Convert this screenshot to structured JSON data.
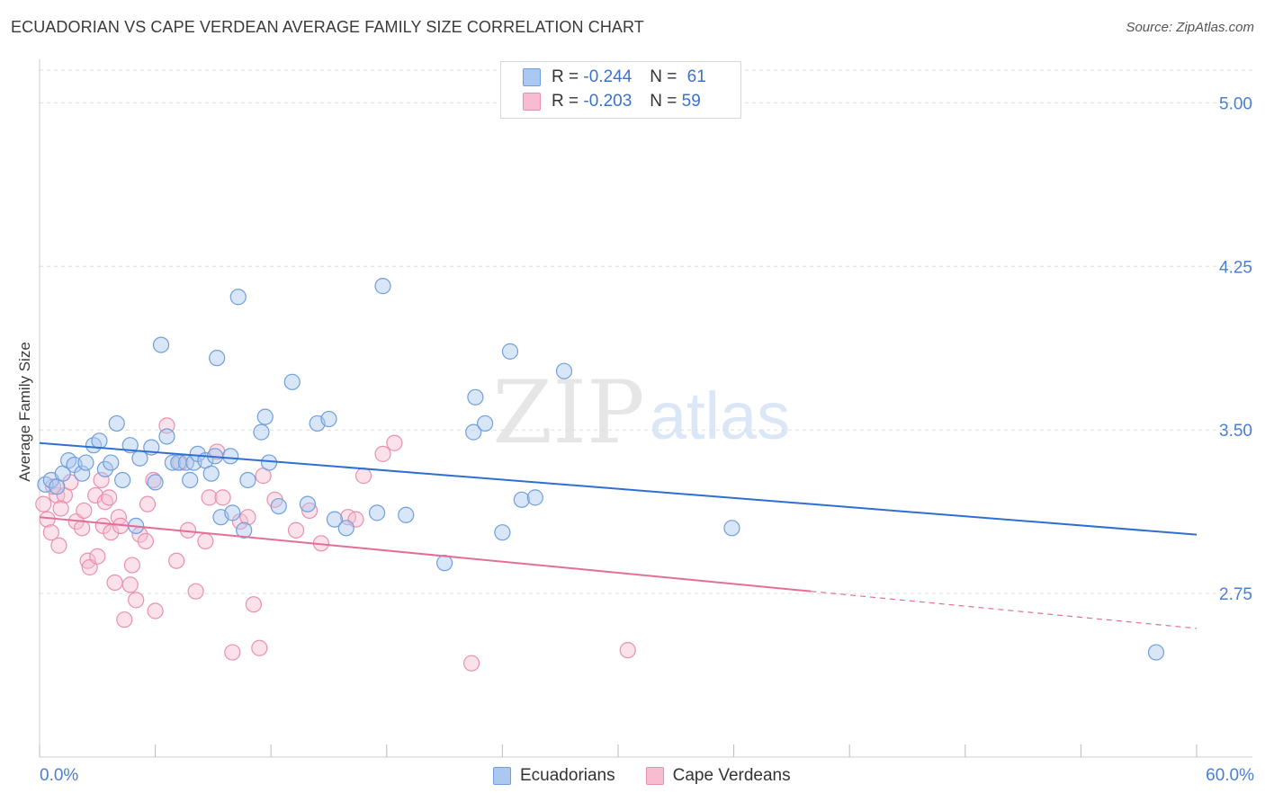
{
  "header": {
    "title": "ECUADORIAN VS CAPE VERDEAN AVERAGE FAMILY SIZE CORRELATION CHART",
    "source": "Source: ZipAtlas.com"
  },
  "watermark": {
    "zip": "ZIP",
    "atlas": "atlas"
  },
  "legend_stats": [
    {
      "r_label": "R =",
      "r_value": "-0.244",
      "n_label": "N =",
      "n_value": "61"
    },
    {
      "r_label": "R =",
      "r_value": "-0.203",
      "n_label": "N =",
      "n_value": "59"
    }
  ],
  "colors": {
    "ecuadorians_fill": "#aac8f0",
    "ecuadorians_stroke": "#6f9fdc",
    "ecuadorians_line": "#2f6fcf",
    "cape_verdeans_fill": "#f7bcd0",
    "cape_verdeans_stroke": "#ea90ae",
    "cape_verdeans_line": "#e26f98",
    "tick_label": "#4a7fd0",
    "grid": "#dddddd"
  },
  "chart_data": {
    "type": "scatter",
    "title": "ECUADORIAN VS CAPE VERDEAN AVERAGE FAMILY SIZE CORRELATION CHART",
    "xlabel": "",
    "ylabel": "Average Family Size",
    "xlim": [
      0,
      60
    ],
    "ylim": [
      2.0,
      5.15
    ],
    "x_tick_labels": [
      "0.0%",
      "60.0%"
    ],
    "y_ticks": [
      2.75,
      3.5,
      4.25,
      5.0
    ],
    "y_tick_labels": [
      "2.75",
      "3.50",
      "4.25",
      "5.00"
    ],
    "grid": "horizontal dashed",
    "legend_placement": "top-center and bottom",
    "series": [
      {
        "name": "Ecuadorians",
        "r": -0.244,
        "n": 61,
        "trend": {
          "x": [
            0,
            60
          ],
          "y": [
            3.44,
            3.02
          ]
        },
        "points": [
          [
            0.3,
            3.25
          ],
          [
            0.6,
            3.27
          ],
          [
            0.9,
            3.24
          ],
          [
            1.2,
            3.3
          ],
          [
            1.5,
            3.36
          ],
          [
            1.8,
            3.34
          ],
          [
            2.2,
            3.3
          ],
          [
            2.4,
            3.35
          ],
          [
            2.8,
            3.43
          ],
          [
            3.1,
            3.45
          ],
          [
            3.4,
            3.32
          ],
          [
            3.7,
            3.35
          ],
          [
            4.0,
            3.53
          ],
          [
            4.3,
            3.27
          ],
          [
            4.7,
            3.43
          ],
          [
            5.0,
            3.06
          ],
          [
            5.2,
            3.37
          ],
          [
            5.8,
            3.42
          ],
          [
            6.0,
            3.26
          ],
          [
            6.3,
            3.89
          ],
          [
            6.6,
            3.47
          ],
          [
            6.9,
            3.35
          ],
          [
            7.2,
            3.35
          ],
          [
            7.6,
            3.35
          ],
          [
            7.8,
            3.27
          ],
          [
            8.0,
            3.35
          ],
          [
            8.2,
            3.39
          ],
          [
            8.6,
            3.36
          ],
          [
            8.9,
            3.3
          ],
          [
            9.1,
            3.38
          ],
          [
            9.2,
            3.83
          ],
          [
            9.4,
            3.1
          ],
          [
            9.9,
            3.38
          ],
          [
            10.0,
            3.12
          ],
          [
            10.3,
            4.11
          ],
          [
            10.6,
            3.04
          ],
          [
            10.8,
            3.27
          ],
          [
            11.5,
            3.49
          ],
          [
            11.7,
            3.56
          ],
          [
            11.9,
            3.35
          ],
          [
            12.4,
            3.15
          ],
          [
            13.1,
            3.72
          ],
          [
            13.9,
            3.16
          ],
          [
            14.4,
            3.53
          ],
          [
            15.0,
            3.55
          ],
          [
            15.3,
            3.09
          ],
          [
            15.9,
            3.05
          ],
          [
            17.5,
            3.12
          ],
          [
            17.8,
            4.16
          ],
          [
            19.0,
            3.11
          ],
          [
            21.0,
            2.89
          ],
          [
            22.5,
            3.49
          ],
          [
            22.6,
            3.65
          ],
          [
            23.1,
            3.53
          ],
          [
            24.0,
            3.03
          ],
          [
            24.4,
            3.86
          ],
          [
            25.0,
            3.18
          ],
          [
            25.7,
            3.19
          ],
          [
            27.2,
            3.77
          ],
          [
            35.9,
            3.05
          ],
          [
            57.9,
            2.48
          ]
        ]
      },
      {
        "name": "Cape Verdeans",
        "r": -0.203,
        "n": 59,
        "trend": {
          "x": [
            0,
            40
          ],
          "y": [
            3.1,
            2.76
          ],
          "dashed_x": [
            40,
            60
          ],
          "dashed_y": [
            2.76,
            2.59
          ]
        },
        "points": [
          [
            0.2,
            3.16
          ],
          [
            0.4,
            3.09
          ],
          [
            0.6,
            3.03
          ],
          [
            0.9,
            3.2
          ],
          [
            1.0,
            2.97
          ],
          [
            1.3,
            3.2
          ],
          [
            1.6,
            3.26
          ],
          [
            1.9,
            3.08
          ],
          [
            2.2,
            3.05
          ],
          [
            2.3,
            3.13
          ],
          [
            2.5,
            2.9
          ],
          [
            2.6,
            2.87
          ],
          [
            2.9,
            3.2
          ],
          [
            3.0,
            2.92
          ],
          [
            3.3,
            3.06
          ],
          [
            3.4,
            3.17
          ],
          [
            3.6,
            3.19
          ],
          [
            3.7,
            3.03
          ],
          [
            3.9,
            2.8
          ],
          [
            4.1,
            3.1
          ],
          [
            4.2,
            3.06
          ],
          [
            4.4,
            2.63
          ],
          [
            4.7,
            2.79
          ],
          [
            4.8,
            2.88
          ],
          [
            5.0,
            2.72
          ],
          [
            5.2,
            3.02
          ],
          [
            5.5,
            2.99
          ],
          [
            5.6,
            3.16
          ],
          [
            6.0,
            2.67
          ],
          [
            6.6,
            3.52
          ],
          [
            7.1,
            2.9
          ],
          [
            7.3,
            3.35
          ],
          [
            7.7,
            3.04
          ],
          [
            8.1,
            2.76
          ],
          [
            8.6,
            2.99
          ],
          [
            8.8,
            3.19
          ],
          [
            9.2,
            3.4
          ],
          [
            9.5,
            3.19
          ],
          [
            10.0,
            2.48
          ],
          [
            10.4,
            3.08
          ],
          [
            10.8,
            3.1
          ],
          [
            11.1,
            2.7
          ],
          [
            11.4,
            2.5
          ],
          [
            11.6,
            3.29
          ],
          [
            12.2,
            3.18
          ],
          [
            13.3,
            3.04
          ],
          [
            14.0,
            3.13
          ],
          [
            14.6,
            2.98
          ],
          [
            16.0,
            3.1
          ],
          [
            16.4,
            3.09
          ],
          [
            16.8,
            3.29
          ],
          [
            17.8,
            3.39
          ],
          [
            18.4,
            3.44
          ],
          [
            22.4,
            2.43
          ],
          [
            30.5,
            2.49
          ],
          [
            0.7,
            3.24
          ],
          [
            1.1,
            3.14
          ],
          [
            3.2,
            3.27
          ],
          [
            5.9,
            3.27
          ]
        ]
      }
    ]
  },
  "bottom_legend": [
    "Ecuadorians",
    "Cape Verdeans"
  ]
}
